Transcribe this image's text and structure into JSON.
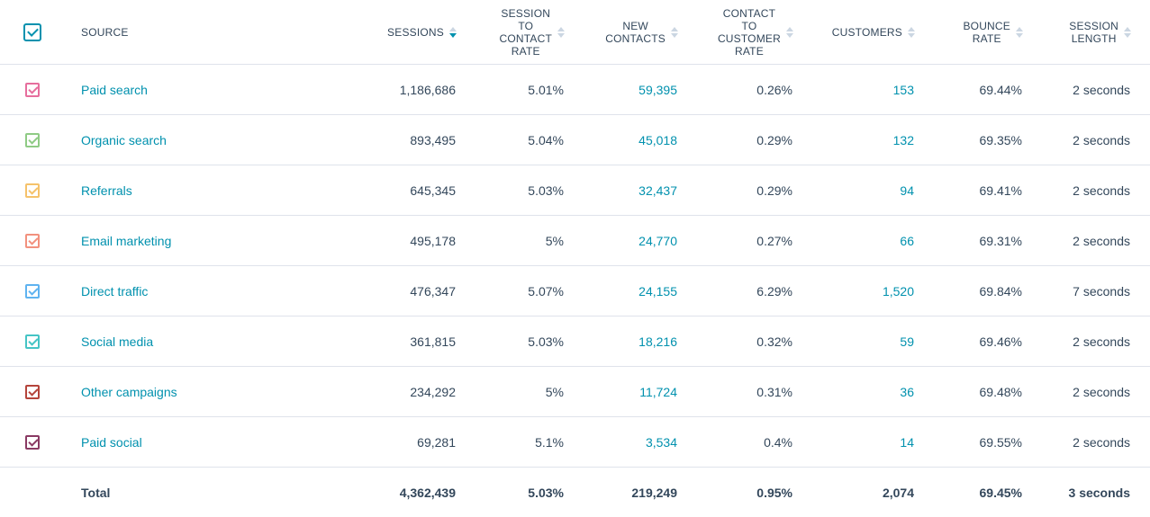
{
  "header": {
    "source": "SOURCE",
    "sessions": "SESSIONS",
    "session_to_contact_rate": [
      "SESSION",
      "TO",
      "CONTACT",
      "RATE"
    ],
    "new_contacts": [
      "NEW",
      "CONTACTS"
    ],
    "contact_to_customer_rate": [
      "CONTACT",
      "TO",
      "CUSTOMER",
      "RATE"
    ],
    "customers": "CUSTOMERS",
    "bounce_rate": [
      "BOUNCE",
      "RATE"
    ],
    "session_length": [
      "SESSION",
      "LENGTH"
    ],
    "active_sort": "sessions",
    "select_all_checked": true
  },
  "rows": [
    {
      "source": "Paid search",
      "sessions": "1,186,686",
      "session_to_contact_rate": "5.01%",
      "new_contacts": "59,395",
      "contact_to_customer_rate": "0.26%",
      "customers": "153",
      "bounce_rate": "69.44%",
      "session_length": "2 seconds",
      "color": "#e66e9d"
    },
    {
      "source": "Organic search",
      "sessions": "893,495",
      "session_to_contact_rate": "5.04%",
      "new_contacts": "45,018",
      "contact_to_customer_rate": "0.29%",
      "customers": "132",
      "bounce_rate": "69.35%",
      "session_length": "2 seconds",
      "color": "#8fcb85"
    },
    {
      "source": "Referrals",
      "sessions": "645,345",
      "session_to_contact_rate": "5.03%",
      "new_contacts": "32,437",
      "contact_to_customer_rate": "0.29%",
      "customers": "94",
      "bounce_rate": "69.41%",
      "session_length": "2 seconds",
      "color": "#f5c26b"
    },
    {
      "source": "Email marketing",
      "sessions": "495,178",
      "session_to_contact_rate": "5%",
      "new_contacts": "24,770",
      "contact_to_customer_rate": "0.27%",
      "customers": "66",
      "bounce_rate": "69.31%",
      "session_length": "2 seconds",
      "color": "#f2917e"
    },
    {
      "source": "Direct traffic",
      "sessions": "476,347",
      "session_to_contact_rate": "5.07%",
      "new_contacts": "24,155",
      "contact_to_customer_rate": "6.29%",
      "customers": "1,520",
      "bounce_rate": "69.84%",
      "session_length": "7 seconds",
      "color": "#5fb3f0"
    },
    {
      "source": "Social media",
      "sessions": "361,815",
      "session_to_contact_rate": "5.03%",
      "new_contacts": "18,216",
      "contact_to_customer_rate": "0.32%",
      "customers": "59",
      "bounce_rate": "69.46%",
      "session_length": "2 seconds",
      "color": "#45c4c5"
    },
    {
      "source": "Other campaigns",
      "sessions": "234,292",
      "session_to_contact_rate": "5%",
      "new_contacts": "11,724",
      "contact_to_customer_rate": "0.31%",
      "customers": "36",
      "bounce_rate": "69.48%",
      "session_length": "2 seconds",
      "color": "#b5443b"
    },
    {
      "source": "Paid social",
      "sessions": "69,281",
      "session_to_contact_rate": "5.1%",
      "new_contacts": "3,534",
      "contact_to_customer_rate": "0.4%",
      "customers": "14",
      "bounce_rate": "69.55%",
      "session_length": "2 seconds",
      "color": "#8a3a63"
    }
  ],
  "total": {
    "label": "Total",
    "sessions": "4,362,439",
    "session_to_contact_rate": "5.03%",
    "new_contacts": "219,249",
    "contact_to_customer_rate": "0.95%",
    "customers": "2,074",
    "bounce_rate": "69.45%",
    "session_length": "3 seconds"
  },
  "colors": {
    "link": "#0091ae",
    "text": "#33475b",
    "divider": "#dfe3eb"
  }
}
